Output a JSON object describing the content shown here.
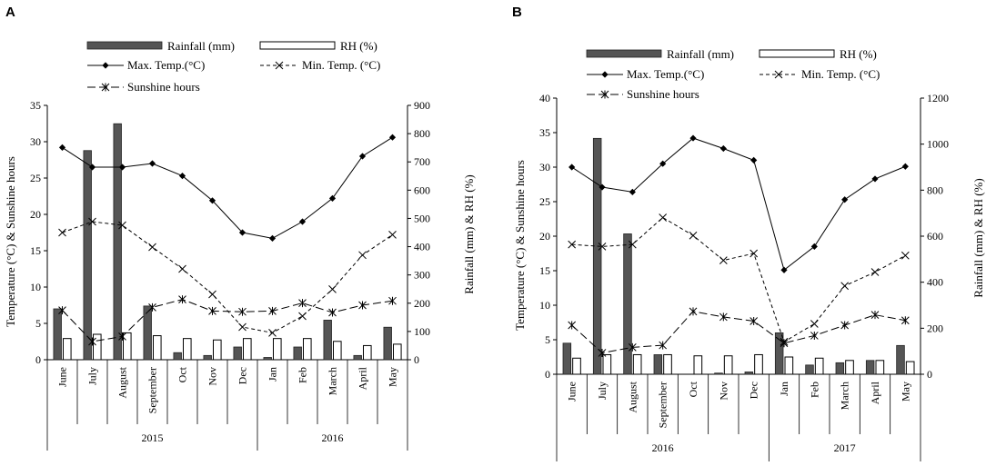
{
  "chart_data": [
    {
      "panel": "A",
      "type": "bar+line",
      "categories": [
        "June",
        "July",
        "August",
        "September",
        "Oct",
        "Nov",
        "Dec",
        "Jan",
        "Feb",
        "March",
        "April",
        "May"
      ],
      "year_labels": [
        "2015",
        "2016"
      ],
      "year_split_index": 7,
      "left_axis": {
        "label": "Temperature (°C) & Sunshine hours",
        "min": 0,
        "max": 35,
        "step": 5,
        "ticks": [
          "0",
          "5",
          "10",
          "15",
          "20",
          "25",
          "30",
          "35"
        ]
      },
      "right_axis": {
        "label": "Rainfall (mm) & RH (%)",
        "min": 0,
        "max": 900,
        "step": 100,
        "ticks": [
          "0",
          "100",
          "200",
          "300",
          "400",
          "500",
          "600",
          "700",
          "800",
          "900"
        ]
      },
      "legend": {
        "rainfall": "Rainfall (mm)",
        "rh": "RH (%)",
        "max_temp": "Max. Temp.(°C)",
        "min_temp": "Min. Temp. (°C)",
        "sunshine": "Sunshine hours"
      },
      "series": [
        {
          "name": "Rainfall (mm)",
          "axis": "right",
          "kind": "bar",
          "values": [
            180,
            740,
            835,
            190,
            25,
            15,
            45,
            8,
            45,
            140,
            15,
            115
          ]
        },
        {
          "name": "RH (%)",
          "axis": "right",
          "kind": "bar",
          "values": [
            75,
            90,
            95,
            85,
            75,
            70,
            75,
            75,
            75,
            65,
            50,
            55
          ]
        },
        {
          "name": "Max. Temp.(°C)",
          "axis": "left",
          "kind": "line",
          "values": [
            29.2,
            26.5,
            26.5,
            27.0,
            25.3,
            21.9,
            17.5,
            16.7,
            19.0,
            22.2,
            28.0,
            30.6
          ]
        },
        {
          "name": "Min. Temp. (°C)",
          "axis": "left",
          "kind": "line",
          "values": [
            17.5,
            19.0,
            18.5,
            15.5,
            12.5,
            9.0,
            4.5,
            3.7,
            6.0,
            9.7,
            14.4,
            17.2
          ]
        },
        {
          "name": "Sunshine hours",
          "axis": "left",
          "kind": "line",
          "values": [
            6.8,
            2.5,
            3.2,
            7.2,
            8.3,
            6.7,
            6.6,
            6.7,
            7.8,
            6.5,
            7.5,
            8.1
          ]
        }
      ]
    },
    {
      "panel": "B",
      "type": "bar+line",
      "categories": [
        "June",
        "July",
        "August",
        "September",
        "Oct",
        "Nov",
        "Dec",
        "Jan",
        "Feb",
        "March",
        "April",
        "May"
      ],
      "year_labels": [
        "2016",
        "2017"
      ],
      "year_split_index": 7,
      "left_axis": {
        "label": "Temperature (°C) & Sunshine hours",
        "min": 0,
        "max": 40,
        "step": 5,
        "ticks": [
          "0",
          "5",
          "10",
          "15",
          "20",
          "25",
          "30",
          "35",
          "40"
        ]
      },
      "right_axis": {
        "label": "Rainfall (mm) & RH (%)",
        "min": 0,
        "max": 1200,
        "step": 200,
        "ticks": [
          "0",
          "200",
          "400",
          "600",
          "800",
          "1000",
          "1200"
        ]
      },
      "legend": {
        "rainfall": "Rainfall (mm)",
        "rh": "RH (%)",
        "max_temp": "Max. Temp.(°C)",
        "min_temp": "Min. Temp. (°C)",
        "sunshine": "Sunshine hours"
      },
      "series": [
        {
          "name": "Rainfall (mm)",
          "axis": "right",
          "kind": "bar",
          "values": [
            135,
            1025,
            610,
            85,
            0,
            5,
            10,
            180,
            40,
            50,
            60,
            125
          ]
        },
        {
          "name": "RH (%)",
          "axis": "right",
          "kind": "bar",
          "values": [
            70,
            85,
            85,
            85,
            80,
            80,
            85,
            75,
            70,
            60,
            60,
            55
          ]
        },
        {
          "name": "Max. Temp.(°C)",
          "axis": "left",
          "kind": "line",
          "values": [
            30.0,
            27.1,
            26.4,
            30.5,
            34.2,
            32.7,
            31.0,
            15.1,
            18.5,
            25.3,
            28.3,
            30.1
          ]
        },
        {
          "name": "Min. Temp. (°C)",
          "axis": "left",
          "kind": "line",
          "values": [
            18.8,
            18.5,
            18.8,
            22.7,
            20.1,
            16.5,
            17.5,
            4.7,
            7.3,
            12.8,
            14.8,
            17.2
          ]
        },
        {
          "name": "Sunshine hours",
          "axis": "left",
          "kind": "line",
          "values": [
            7.1,
            3.1,
            3.9,
            4.2,
            9.1,
            8.3,
            7.7,
            4.5,
            5.6,
            7.1,
            8.6,
            7.8
          ]
        }
      ]
    }
  ],
  "panels": {
    "a_label": "A",
    "b_label": "B"
  }
}
